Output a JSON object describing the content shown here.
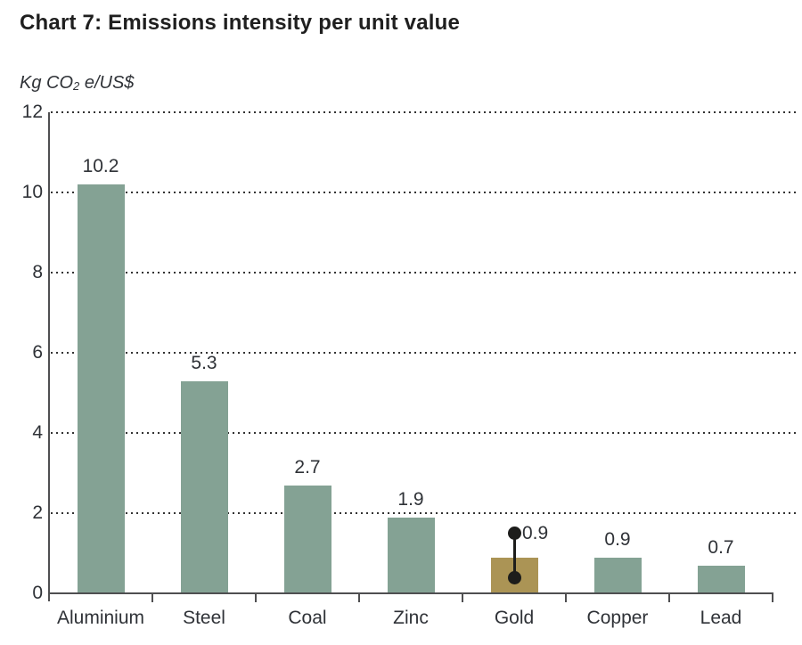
{
  "title": "Chart 7: Emissions intensity per unit value",
  "unit_label": {
    "prefix": "Kg CO",
    "subscript": "2",
    "suffix": " e/US$"
  },
  "colors": {
    "bar_green": "#84a294",
    "bar_gold": "#ab9455",
    "marker_black": "#1d1d1b",
    "gridline": "#333333",
    "axis": "#4f4f51",
    "title_text": "#1f1f1f",
    "label_text": "#2f3237"
  },
  "chart_data": {
    "type": "bar",
    "title": "Chart 7: Emissions intensity per unit value",
    "ylabel": "Kg CO2 e/US$",
    "xlabel": "",
    "ylim": [
      0,
      12
    ],
    "yticks": [
      0,
      2,
      4,
      6,
      8,
      10,
      12
    ],
    "grid": "horizontal dotted lines at each labeled y tick, drawn behind bars",
    "legend": "none",
    "categories": [
      "Aluminium",
      "Steel",
      "Coal",
      "Zinc",
      "Gold",
      "Copper",
      "Lead"
    ],
    "values": [
      10.2,
      5.3,
      2.7,
      1.9,
      0.9,
      0.9,
      0.7
    ],
    "value_labels": [
      "10.2",
      "5.3",
      "2.7",
      "1.9",
      "0.9",
      "0.9",
      "0.7"
    ],
    "highlight": {
      "category": "Gold",
      "bar_color": "#ab9455",
      "range_marker": {
        "low": 0.4,
        "high": 1.5,
        "style": "vertical black line with filled circle endpoints",
        "label": "0.9"
      }
    }
  }
}
